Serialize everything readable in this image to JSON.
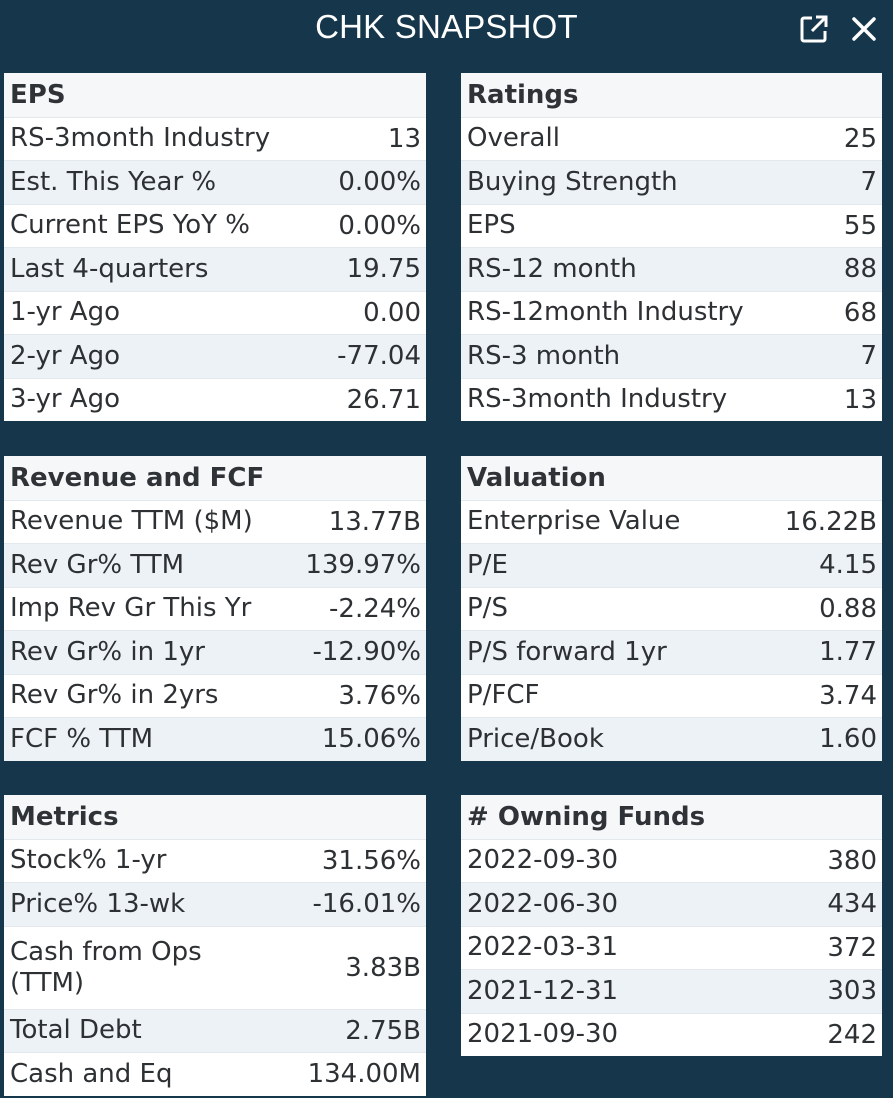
{
  "header": {
    "title": "CHK SNAPSHOT"
  },
  "eps": {
    "title": "EPS",
    "rows": [
      {
        "label": "RS-3month Industry",
        "value": "13"
      },
      {
        "label": "Est. This Year %",
        "value": "0.00%"
      },
      {
        "label": "Current EPS YoY %",
        "value": "0.00%"
      },
      {
        "label": "Last 4-quarters",
        "value": "19.75"
      },
      {
        "label": "1-yr Ago",
        "value": "0.00"
      },
      {
        "label": "2-yr Ago",
        "value": "-77.04"
      },
      {
        "label": "3-yr Ago",
        "value": "26.71"
      }
    ]
  },
  "ratings": {
    "title": "Ratings",
    "rows": [
      {
        "label": "Overall",
        "value": "25"
      },
      {
        "label": "Buying Strength",
        "value": "7"
      },
      {
        "label": "EPS",
        "value": "55"
      },
      {
        "label": "RS-12 month",
        "value": "88"
      },
      {
        "label": "RS-12month Industry",
        "value": "68"
      },
      {
        "label": "RS-3 month",
        "value": "7"
      },
      {
        "label": "RS-3month Industry",
        "value": "13"
      }
    ]
  },
  "revenue": {
    "title": "Revenue and FCF",
    "rows": [
      {
        "label": "Revenue TTM ($M)",
        "value": "13.77B"
      },
      {
        "label": "Rev Gr% TTM",
        "value": "139.97%"
      },
      {
        "label": "Imp Rev Gr This Yr",
        "value": "-2.24%"
      },
      {
        "label": "Rev Gr% in 1yr",
        "value": "-12.90%"
      },
      {
        "label": "Rev Gr% in 2yrs",
        "value": "3.76%"
      },
      {
        "label": "FCF % TTM",
        "value": "15.06%"
      }
    ]
  },
  "valuation": {
    "title": "Valuation",
    "rows": [
      {
        "label": "Enterprise Value",
        "value": "16.22B"
      },
      {
        "label": "P/E",
        "value": "4.15"
      },
      {
        "label": "P/S",
        "value": "0.88"
      },
      {
        "label": "P/S forward 1yr",
        "value": "1.77"
      },
      {
        "label": "P/FCF",
        "value": "3.74"
      },
      {
        "label": "Price/Book",
        "value": "1.60"
      }
    ]
  },
  "metrics": {
    "title": "Metrics",
    "rows": [
      {
        "label": "Stock% 1-yr",
        "value": "31.56%"
      },
      {
        "label": "Price% 13-wk",
        "value": "-16.01%"
      },
      {
        "label": "Cash from Ops (TTM)",
        "value": "3.83B"
      },
      {
        "label": "Total Debt",
        "value": "2.75B"
      },
      {
        "label": "Cash and Eq",
        "value": "134.00M"
      }
    ]
  },
  "funds": {
    "title": "# Owning Funds",
    "rows": [
      {
        "label": "2022-09-30",
        "value": "380"
      },
      {
        "label": "2022-06-30",
        "value": "434"
      },
      {
        "label": "2022-03-31",
        "value": "372"
      },
      {
        "label": "2021-12-31",
        "value": "303"
      },
      {
        "label": "2021-09-30",
        "value": "242"
      }
    ]
  }
}
